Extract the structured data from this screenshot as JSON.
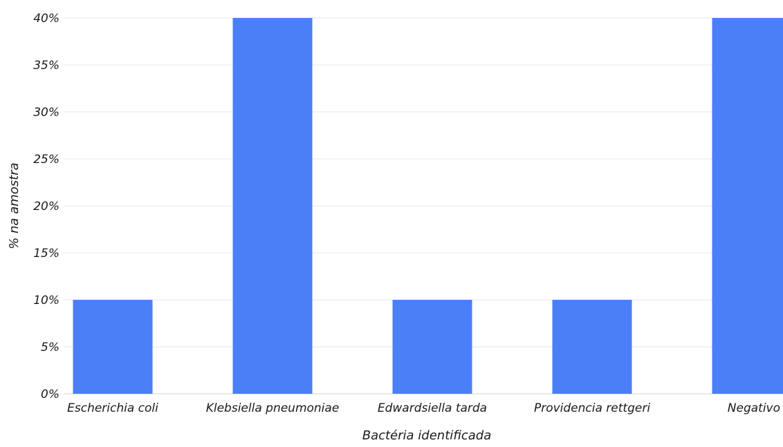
{
  "chart_data": {
    "type": "bar",
    "title": "",
    "xlabel": "Bactéria identificada",
    "ylabel": "% na amostra",
    "categories": [
      "Escherichia coli",
      "Klebsiella pneumoniae",
      "Edwardsiella tarda",
      "Providencia rettgeri",
      "Negativo"
    ],
    "values": [
      10,
      40,
      10,
      10,
      40
    ],
    "value_unit": "%",
    "ylim": [
      0,
      40
    ],
    "yticks": [
      0,
      5,
      10,
      15,
      20,
      25,
      30,
      35,
      40
    ],
    "ytick_labels": [
      "0%",
      "5%",
      "10%",
      "15%",
      "20%",
      "25%",
      "30%",
      "35%",
      "40%"
    ],
    "grid": true,
    "legend": "none",
    "bar_color": "#4a7ff7"
  }
}
